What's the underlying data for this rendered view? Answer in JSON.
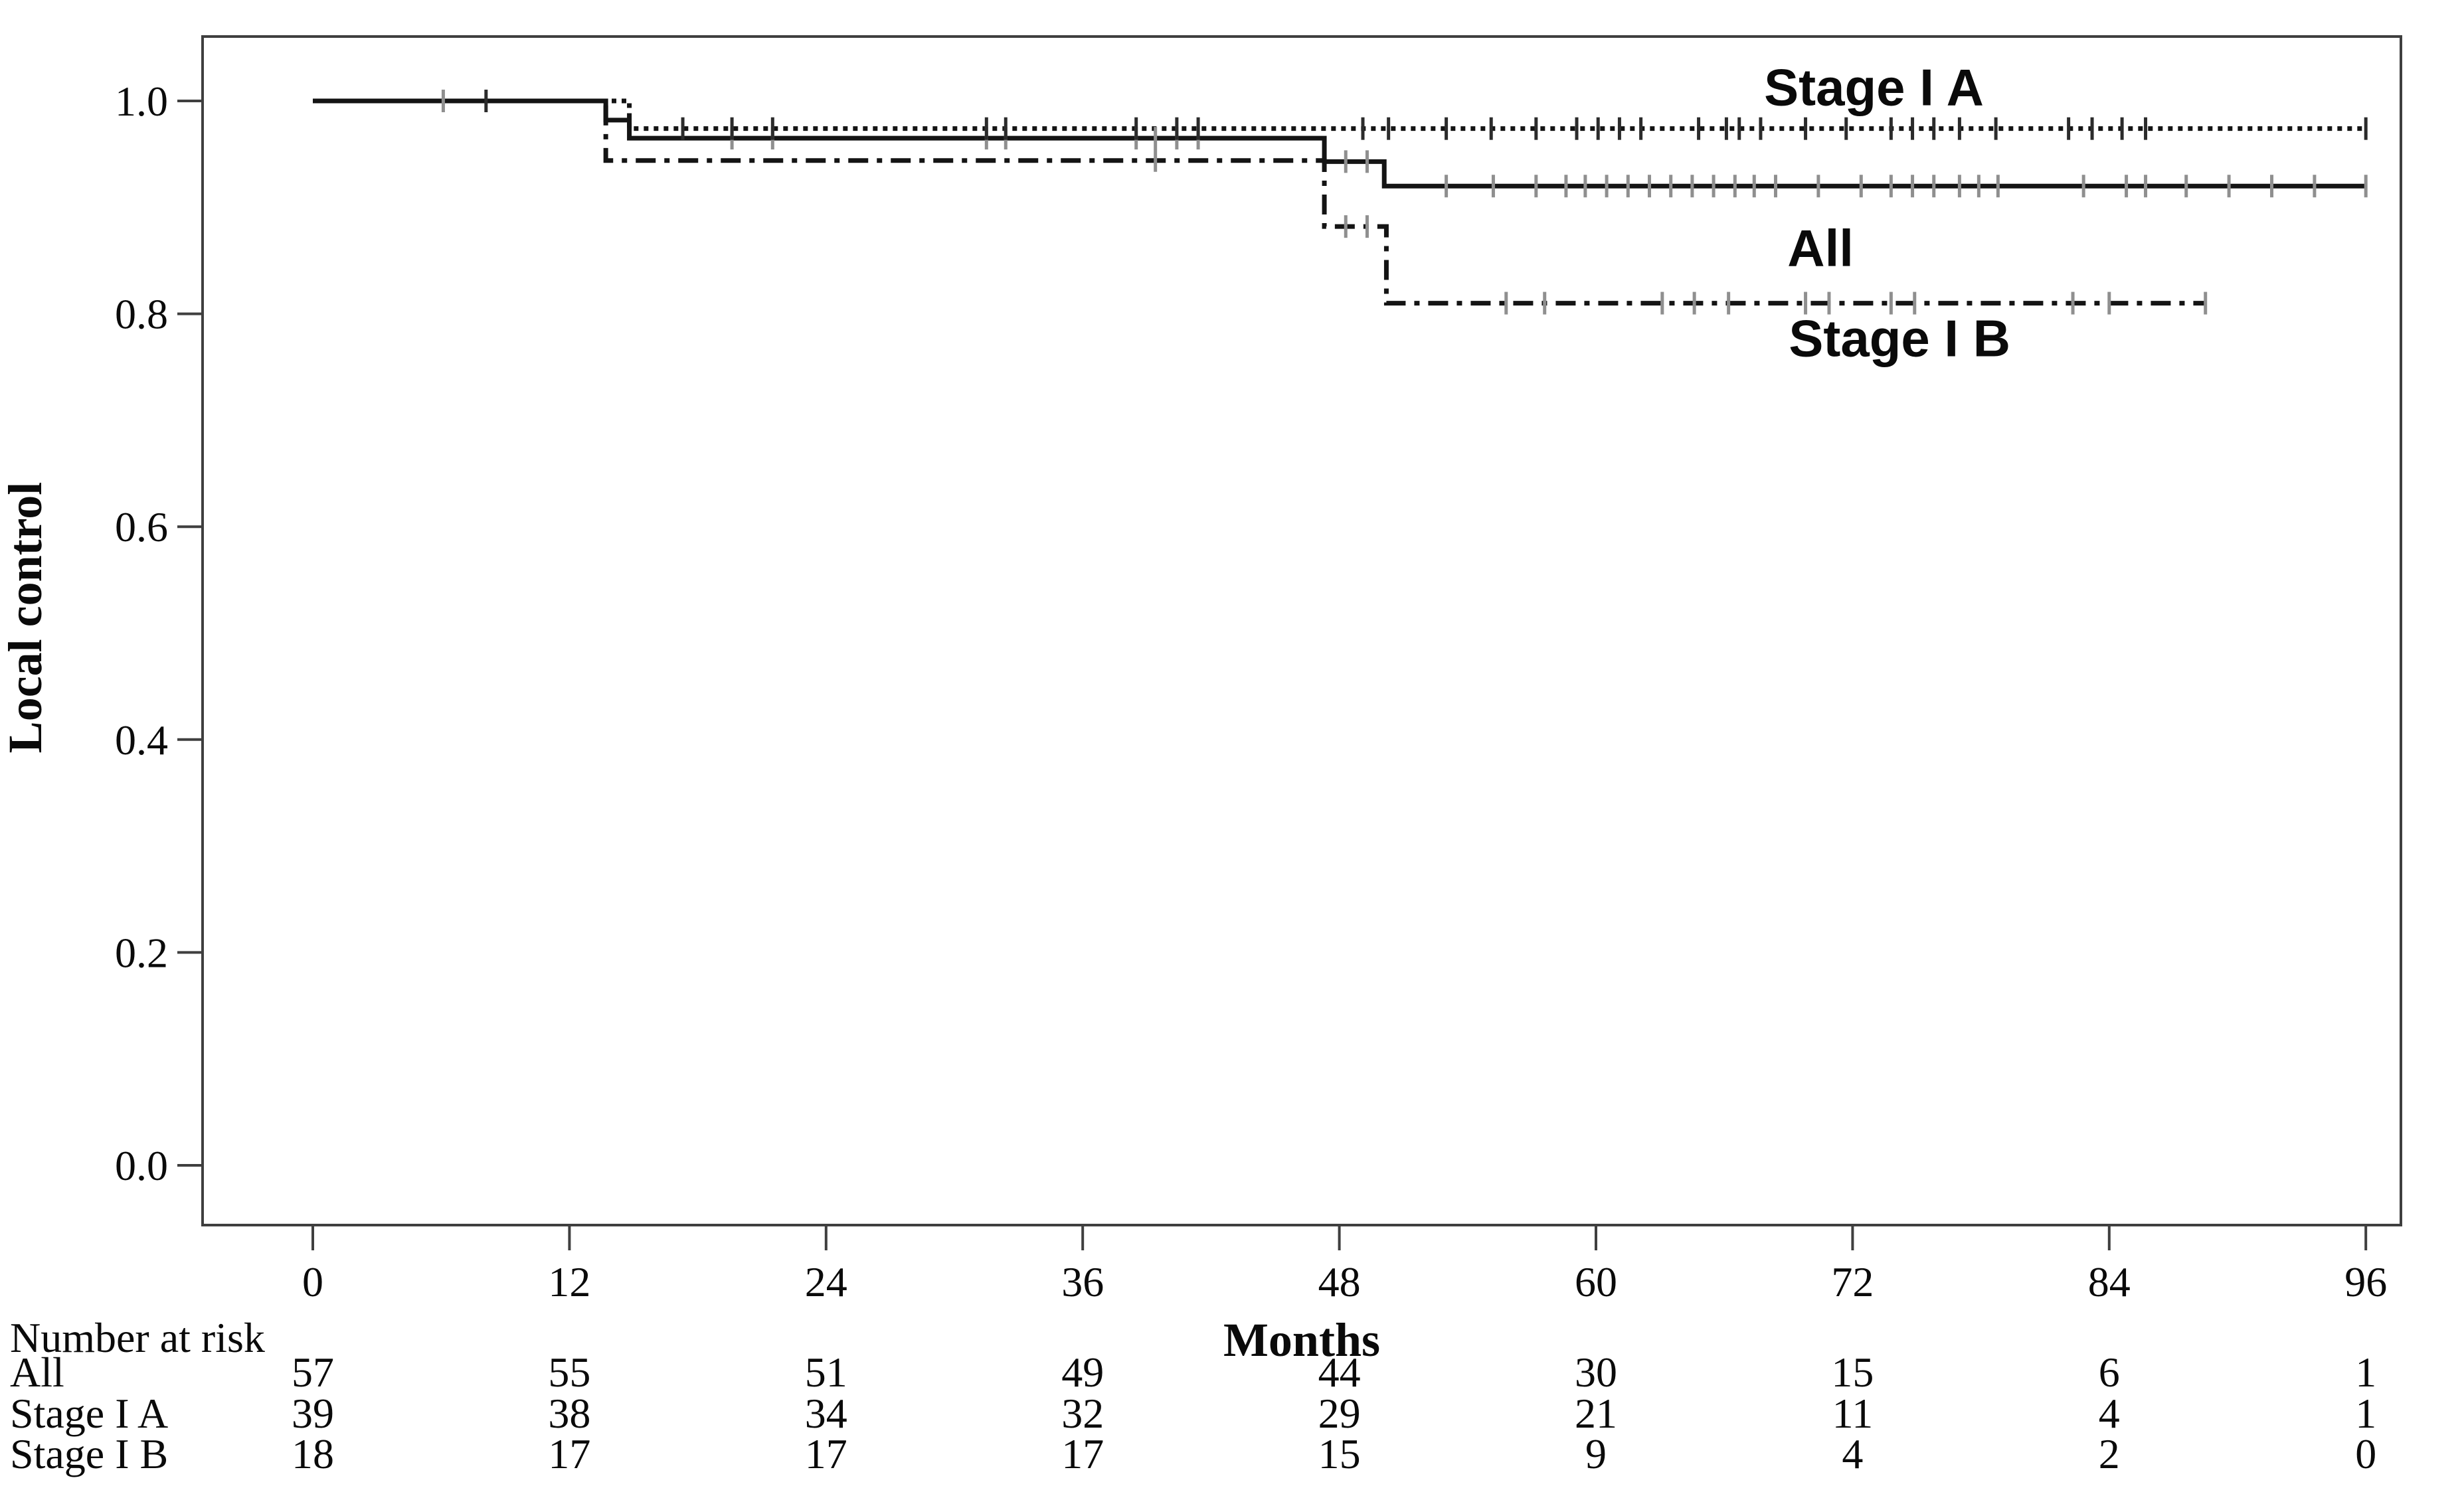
{
  "figure": {
    "background_color": "#ffffff",
    "frame_color": "#3f3f3f",
    "curve_color": "#141414",
    "censor_grey": "#8f8f8f",
    "censor_dark": "#2b2b2b"
  },
  "chart_data": {
    "type": "line",
    "subtype": "kaplan-meier-step",
    "title": "",
    "xlabel": "Months",
    "ylabel": "Local control",
    "xlim": [
      0,
      96
    ],
    "ylim": [
      0.0,
      1.0
    ],
    "grid": false,
    "legend_position": "inline-annotations",
    "x_ticks": [
      0,
      12,
      24,
      36,
      48,
      60,
      72,
      84,
      96
    ],
    "x_tick_labels": [
      "0",
      "12",
      "24",
      "36",
      "48",
      "60",
      "72",
      "84",
      "96"
    ],
    "y_ticks": [
      0.0,
      0.2,
      0.4,
      0.6,
      0.8,
      1.0
    ],
    "y_tick_labels": [
      "0.0",
      "0.2",
      "0.4",
      "0.6",
      "0.8",
      "1.0"
    ],
    "series": [
      {
        "name": "All",
        "line_style": "solid",
        "color": "#141414",
        "censor_color": "#8f8f8f",
        "points": [
          [
            0,
            1.0
          ],
          [
            13.7,
            1.0
          ],
          [
            13.7,
            0.982
          ],
          [
            14.8,
            0.982
          ],
          [
            14.8,
            0.965
          ],
          [
            47.3,
            0.965
          ],
          [
            47.3,
            0.943
          ],
          [
            50.1,
            0.943
          ],
          [
            50.1,
            0.92
          ],
          [
            96,
            0.92
          ]
        ],
        "censors": [
          [
            19.6,
            0.965
          ],
          [
            21.5,
            0.965
          ],
          [
            31.5,
            0.965
          ],
          [
            32.4,
            0.965
          ],
          [
            38.5,
            0.965
          ],
          [
            39.4,
            0.965
          ],
          [
            40.4,
            0.965
          ],
          [
            41.4,
            0.965
          ],
          [
            48.3,
            0.943
          ],
          [
            49.3,
            0.943
          ],
          [
            53,
            0.92
          ],
          [
            55.2,
            0.92
          ],
          [
            57.2,
            0.92
          ],
          [
            58.6,
            0.92
          ],
          [
            59.5,
            0.92
          ],
          [
            60.5,
            0.92
          ],
          [
            61.5,
            0.92
          ],
          [
            62.5,
            0.92
          ],
          [
            63.5,
            0.92
          ],
          [
            64.5,
            0.92
          ],
          [
            65.5,
            0.92
          ],
          [
            66.5,
            0.92
          ],
          [
            67.4,
            0.92
          ],
          [
            68.4,
            0.92
          ],
          [
            70.4,
            0.92
          ],
          [
            72.4,
            0.92
          ],
          [
            73.8,
            0.92
          ],
          [
            74.8,
            0.92
          ],
          [
            75.8,
            0.92
          ],
          [
            77,
            0.92
          ],
          [
            77.9,
            0.92
          ],
          [
            78.8,
            0.92
          ],
          [
            82.8,
            0.92
          ],
          [
            84.8,
            0.92
          ],
          [
            85.7,
            0.92
          ],
          [
            87.6,
            0.92
          ],
          [
            89.6,
            0.92
          ],
          [
            91.6,
            0.92
          ],
          [
            93.6,
            0.92
          ],
          [
            96,
            0.92
          ]
        ]
      },
      {
        "name": "Stage I A",
        "line_style": "dotted",
        "color": "#141414",
        "censor_color": "#2b2b2b",
        "points": [
          [
            0,
            1.0
          ],
          [
            14.8,
            1.0
          ],
          [
            14.8,
            0.974
          ],
          [
            96,
            0.974
          ]
        ],
        "censors": [
          [
            8.1,
            1.0
          ],
          [
            17.3,
            0.974
          ],
          [
            19.6,
            0.974
          ],
          [
            21.5,
            0.974
          ],
          [
            31.5,
            0.974
          ],
          [
            32.4,
            0.974
          ],
          [
            38.5,
            0.974
          ],
          [
            40.4,
            0.974
          ],
          [
            41.4,
            0.974
          ],
          [
            49.1,
            0.974
          ],
          [
            50.3,
            0.974
          ],
          [
            53,
            0.974
          ],
          [
            55.1,
            0.974
          ],
          [
            57.2,
            0.974
          ],
          [
            59.1,
            0.974
          ],
          [
            60.1,
            0.974
          ],
          [
            61.1,
            0.974
          ],
          [
            62.1,
            0.974
          ],
          [
            64.8,
            0.974
          ],
          [
            66.1,
            0.974
          ],
          [
            66.7,
            0.974
          ],
          [
            67.7,
            0.974
          ],
          [
            69.8,
            0.974
          ],
          [
            71.7,
            0.974
          ],
          [
            73.8,
            0.974
          ],
          [
            74.8,
            0.974
          ],
          [
            75.8,
            0.974
          ],
          [
            77,
            0.974
          ],
          [
            78.7,
            0.974
          ],
          [
            82.1,
            0.974
          ],
          [
            83.2,
            0.974
          ],
          [
            84.6,
            0.974
          ],
          [
            85.7,
            0.974
          ],
          [
            96,
            0.974
          ]
        ]
      },
      {
        "name": "Stage I B",
        "line_style": "dashdot",
        "color": "#141414",
        "censor_color": "#8f8f8f",
        "points": [
          [
            0,
            1.0
          ],
          [
            13.7,
            1.0
          ],
          [
            13.7,
            0.944
          ],
          [
            47.3,
            0.944
          ],
          [
            47.3,
            0.882
          ],
          [
            50.2,
            0.882
          ],
          [
            50.2,
            0.81
          ],
          [
            88.5,
            0.81
          ]
        ],
        "censors": [
          [
            6.1,
            1.0
          ],
          [
            39.4,
            0.944
          ],
          [
            48.3,
            0.882
          ],
          [
            49.3,
            0.882
          ],
          [
            55.8,
            0.81
          ],
          [
            57.6,
            0.81
          ],
          [
            63.1,
            0.81
          ],
          [
            64.6,
            0.81
          ],
          [
            66.2,
            0.81
          ],
          [
            69.8,
            0.81
          ],
          [
            70.9,
            0.81
          ],
          [
            73.8,
            0.81
          ],
          [
            74.9,
            0.81
          ],
          [
            82.3,
            0.81
          ],
          [
            84.0,
            0.81
          ],
          [
            88.5,
            0.81
          ]
        ]
      }
    ],
    "annotations": [
      {
        "text": "Stage I A",
        "month": 73.0,
        "value": 0.996
      },
      {
        "text": "All",
        "month": 70.5,
        "value": 0.845
      },
      {
        "text": "Stage I B",
        "month": 74.2,
        "value": 0.76
      }
    ],
    "risk_table": {
      "title": "Number at risk",
      "months": [
        0,
        12,
        24,
        36,
        48,
        60,
        72,
        84,
        96
      ],
      "rows": [
        {
          "label": "All",
          "values": [
            57,
            55,
            51,
            49,
            44,
            30,
            15,
            6,
            1
          ]
        },
        {
          "label": "Stage I A",
          "values": [
            39,
            38,
            34,
            32,
            29,
            21,
            11,
            4,
            1
          ]
        },
        {
          "label": "Stage I B",
          "values": [
            18,
            17,
            17,
            17,
            15,
            9,
            4,
            2,
            0
          ]
        }
      ]
    }
  }
}
